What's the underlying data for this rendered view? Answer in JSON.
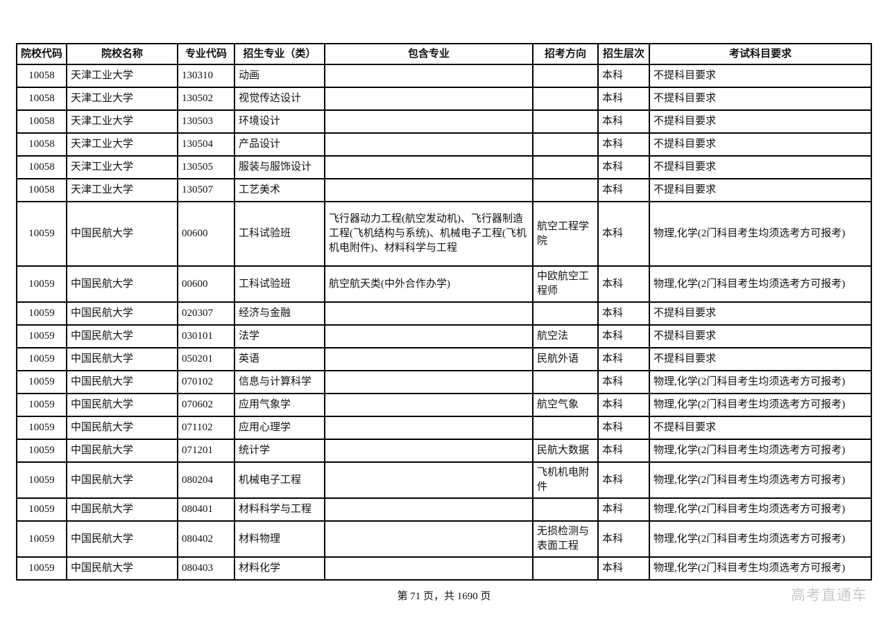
{
  "table": {
    "headers": [
      "院校代码",
      "院校名称",
      "专业代码",
      "招生专业（类）",
      "包含专业",
      "招考方向",
      "招生层次",
      "考试科目要求"
    ],
    "rows": [
      [
        "10058",
        "天津工业大学",
        "130310",
        "动画",
        "",
        "",
        "本科",
        "不提科目要求"
      ],
      [
        "10058",
        "天津工业大学",
        "130502",
        "视觉传达设计",
        "",
        "",
        "本科",
        "不提科目要求"
      ],
      [
        "10058",
        "天津工业大学",
        "130503",
        "环境设计",
        "",
        "",
        "本科",
        "不提科目要求"
      ],
      [
        "10058",
        "天津工业大学",
        "130504",
        "产品设计",
        "",
        "",
        "本科",
        "不提科目要求"
      ],
      [
        "10058",
        "天津工业大学",
        "130505",
        "服装与服饰设计",
        "",
        "",
        "本科",
        "不提科目要求"
      ],
      [
        "10058",
        "天津工业大学",
        "130507",
        "工艺美术",
        "",
        "",
        "本科",
        "不提科目要求"
      ],
      [
        "10059",
        "中国民航大学",
        "00600",
        "工科试验班",
        "飞行器动力工程(航空发动机)、飞行器制造工程(飞机结构与系统)、机械电子工程(飞机机电附件)、材料科学与工程",
        "航空工程学院",
        "本科",
        "物理,化学(2门科目考生均须选考方可报考)"
      ],
      [
        "10059",
        "中国民航大学",
        "00600",
        "工科试验班",
        "航空航天类(中外合作办学)",
        "中欧航空工程师",
        "本科",
        "物理,化学(2门科目考生均须选考方可报考)"
      ],
      [
        "10059",
        "中国民航大学",
        "020307",
        "经济与金融",
        "",
        "",
        "本科",
        "不提科目要求"
      ],
      [
        "10059",
        "中国民航大学",
        "030101",
        "法学",
        "",
        "航空法",
        "本科",
        "不提科目要求"
      ],
      [
        "10059",
        "中国民航大学",
        "050201",
        "英语",
        "",
        "民航外语",
        "本科",
        "不提科目要求"
      ],
      [
        "10059",
        "中国民航大学",
        "070102",
        "信息与计算科学",
        "",
        "",
        "本科",
        "物理,化学(2门科目考生均须选考方可报考)"
      ],
      [
        "10059",
        "中国民航大学",
        "070602",
        "应用气象学",
        "",
        "航空气象",
        "本科",
        "物理,化学(2门科目考生均须选考方可报考)"
      ],
      [
        "10059",
        "中国民航大学",
        "071102",
        "应用心理学",
        "",
        "",
        "本科",
        "不提科目要求"
      ],
      [
        "10059",
        "中国民航大学",
        "071201",
        "统计学",
        "",
        "民航大数据",
        "本科",
        "物理,化学(2门科目考生均须选考方可报考)"
      ],
      [
        "10059",
        "中国民航大学",
        "080204",
        "机械电子工程",
        "",
        "飞机机电附件",
        "本科",
        "物理,化学(2门科目考生均须选考方可报考)"
      ],
      [
        "10059",
        "中国民航大学",
        "080401",
        "材料科学与工程",
        "",
        "",
        "本科",
        "物理,化学(2门科目考生均须选考方可报考)"
      ],
      [
        "10059",
        "中国民航大学",
        "080402",
        "材料物理",
        "",
        "无损检测与表面工程",
        "本科",
        "物理,化学(2门科目考生均须选考方可报考)"
      ],
      [
        "10059",
        "中国民航大学",
        "080403",
        "材料化学",
        "",
        "",
        "本科",
        "物理,化学(2门科目考生均须选考方可报考)"
      ]
    ]
  },
  "footer": {
    "page_info": "第 71 页，共 1690 页",
    "watermark": "高考直通车"
  },
  "colors": {
    "border": "#000000",
    "text": "#111111",
    "watermark": "#c9c9c9",
    "background": "#ffffff"
  }
}
